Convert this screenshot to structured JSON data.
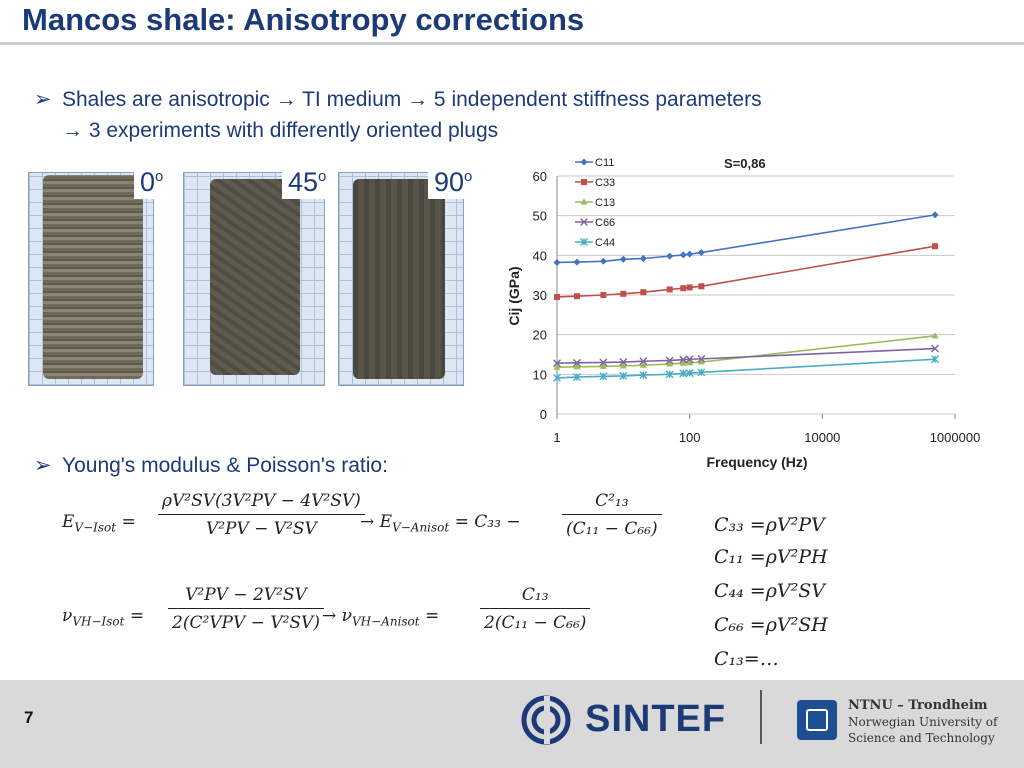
{
  "title": "Mancos shale: Anisotropy corrections",
  "bullets": {
    "b1_line1": "Shales are anisotropic → TI medium → 5 independent stiffness parameters",
    "b1_line2": "→ 3 experiments with differently oriented plugs",
    "b2": "Young's modulus & Poisson's ratio:"
  },
  "samples": [
    {
      "angle": "0",
      "unit": "o"
    },
    {
      "angle": "45",
      "unit": "o"
    },
    {
      "angle": "90",
      "unit": "o"
    }
  ],
  "equations": {
    "e_isot_lhs": "E",
    "e_isot_sub": "V−Isot",
    "e_isot_num": "ρV²SV(3V²PV − 4V²SV)",
    "e_isot_den": "V²PV − V²SV",
    "e_anisot_lhs": "→ E",
    "e_anisot_sub": "V−Anisot",
    "e_anisot_mid": "= C₃₃ −",
    "e_anisot_num": "C²₁₃",
    "e_anisot_den": "(C₁₁ − C₆₆)",
    "nu_isot_lhs": "ν",
    "nu_isot_sub": "VH−Isot",
    "nu_isot_num": "V²PV − 2V²SV",
    "nu_isot_den": "2(C²VPV − V²SV)",
    "nu_anisot_lhs": "→ ν",
    "nu_anisot_sub": "VH−Anisot",
    "nu_anisot_num": "C₁₃",
    "nu_anisot_den": "2(C₁₁ − C₆₆)",
    "c33": "C₃₃ =ρV²PV",
    "c11": "C₁₁ =ρV²PH",
    "c44": "C₄₄ =ρV²SV",
    "c66": "C₆₆ =ρV²SH",
    "c13": "C₁₃=…"
  },
  "chart_data": {
    "type": "line",
    "title": "S=0,86",
    "xlabel": "Frequency (Hz)",
    "ylabel": "Cij (GPa)",
    "xscale": "log",
    "xlim": [
      1,
      1000000
    ],
    "ylim": [
      0,
      60
    ],
    "x_ticks": [
      "1",
      "100",
      "10000",
      "1000000"
    ],
    "y_ticks": [
      "0",
      "10",
      "20",
      "30",
      "40",
      "50",
      "60"
    ],
    "grid": true,
    "legend": "top-left",
    "x": [
      1,
      2,
      5,
      10,
      20,
      50,
      80,
      100,
      150,
      500000
    ],
    "series": [
      {
        "name": "C11",
        "color": "#4472c4",
        "marker": "diamond",
        "values": [
          38.2,
          38.3,
          38.5,
          39.0,
          39.2,
          39.8,
          40.1,
          40.3,
          40.7,
          50.2
        ]
      },
      {
        "name": "C33",
        "color": "#c0504d",
        "marker": "square",
        "values": [
          29.5,
          29.7,
          30.0,
          30.3,
          30.7,
          31.4,
          31.7,
          31.9,
          32.2,
          42.3
        ]
      },
      {
        "name": "C13",
        "color": "#9bbb59",
        "marker": "triangle",
        "values": [
          11.8,
          11.9,
          12.0,
          12.1,
          12.3,
          12.6,
          12.8,
          12.9,
          13.1,
          19.7
        ]
      },
      {
        "name": "C66",
        "color": "#8064a2",
        "marker": "x",
        "values": [
          12.8,
          12.9,
          13.0,
          13.1,
          13.3,
          13.5,
          13.7,
          13.8,
          13.9,
          16.5
        ]
      },
      {
        "name": "C44",
        "color": "#4bacc6",
        "marker": "star",
        "values": [
          9.1,
          9.3,
          9.5,
          9.6,
          9.8,
          10.0,
          10.2,
          10.3,
          10.5,
          13.8
        ]
      }
    ]
  },
  "footer": {
    "page_number": "7",
    "sintef": "SINTEF",
    "ntnu_line1": "NTNU – Trondheim",
    "ntnu_line2": "Norwegian University of",
    "ntnu_line3": "Science and Technology"
  }
}
